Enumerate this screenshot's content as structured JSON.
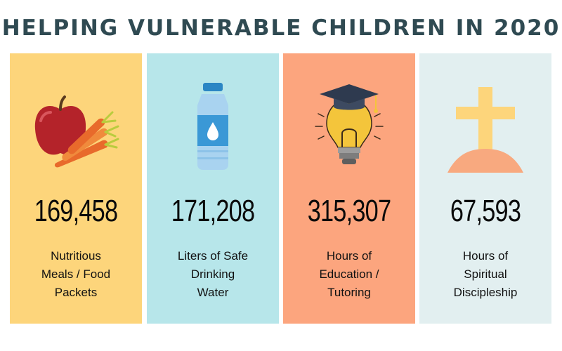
{
  "title": "HELPING VULNERABLE CHILDREN IN 2020",
  "colors": {
    "title": "#2f4a52",
    "meals_panel": "#fdd57b",
    "water_panel": "#b7e6ea",
    "education_panel": "#fca57e",
    "discipleship_panel": "#e2eff0"
  },
  "stats": [
    {
      "icon": "apple-carrots-icon",
      "value": "169,458",
      "label_lines": [
        "Nutritious",
        "Meals / Food",
        "Packets"
      ]
    },
    {
      "icon": "water-bottle-icon",
      "value": "171,208",
      "label_lines": [
        "Liters of Safe",
        "Drinking",
        "Water"
      ]
    },
    {
      "icon": "graduation-lightbulb-icon",
      "value": "315,307",
      "label_lines": [
        "Hours of",
        "Education /",
        "Tutoring"
      ]
    },
    {
      "icon": "cross-on-hill-icon",
      "value": "67,593",
      "label_lines": [
        "Hours of",
        "Spiritual",
        "Discipleship"
      ]
    }
  ]
}
